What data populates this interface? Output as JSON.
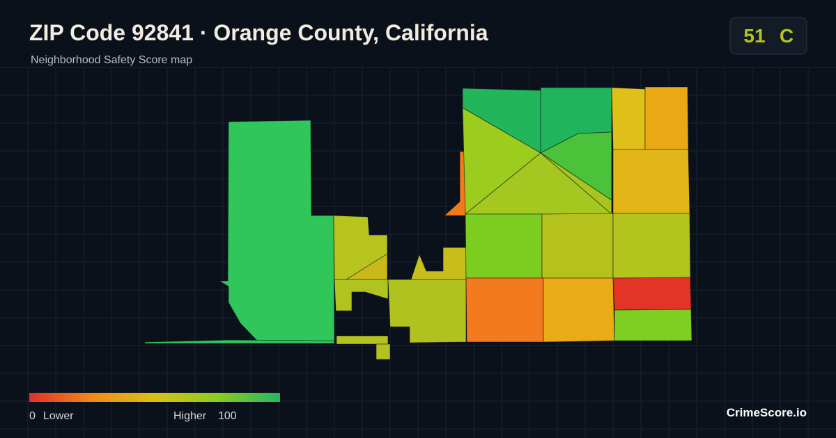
{
  "header": {
    "title": "ZIP Code 92841 · Orange County, California",
    "subtitle": "Neighborhood Safety Score map"
  },
  "score": {
    "value": "51",
    "grade": "C"
  },
  "legend": {
    "min": "0",
    "min_label": "Lower",
    "max_label": "Higher",
    "max": "100"
  },
  "brand": "CrimeScore.io"
}
